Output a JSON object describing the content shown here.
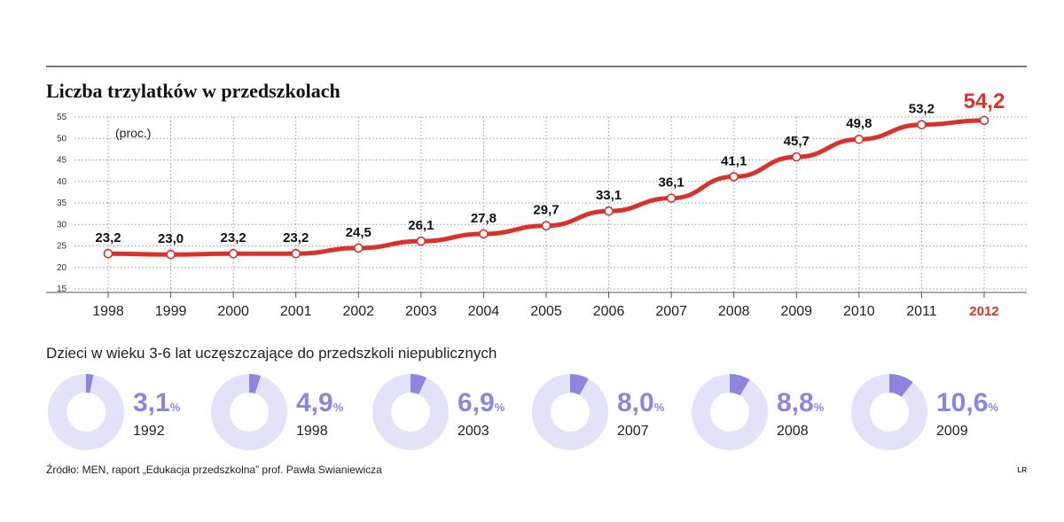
{
  "chart_data": [
    {
      "type": "line",
      "title": "Liczba trzylatków w przedszkolach",
      "unit_label": "(proc.)",
      "x": [
        "1998",
        "1999",
        "2000",
        "2001",
        "2002",
        "2003",
        "2004",
        "2005",
        "2006",
        "2007",
        "2008",
        "2009",
        "2010",
        "2011",
        "2012"
      ],
      "series": [
        {
          "values": [
            23.2,
            23.0,
            23.2,
            23.2,
            24.5,
            26.1,
            27.8,
            29.7,
            33.1,
            36.1,
            41.1,
            45.7,
            49.8,
            53.2,
            54.2
          ],
          "labels": [
            "23,2",
            "23,0",
            "23,2",
            "23,2",
            "24,5",
            "26,1",
            "27,8",
            "29,7",
            "33,1",
            "36,1",
            "41,1",
            "45,7",
            "49,8",
            "53,2",
            "54,2"
          ],
          "color": "#d9322b"
        }
      ],
      "highlight": {
        "x": "2012",
        "color": "#d9322b"
      },
      "y_ticks": [
        "15",
        "20",
        "25",
        "30",
        "35",
        "40",
        "45",
        "50",
        "55"
      ],
      "ylim": [
        15,
        55
      ],
      "grid": true
    },
    {
      "type": "pie",
      "title": "Dzieci w wieku 3-6 lat uczęszczające do przedszkoli niepublicznych",
      "items": [
        {
          "year": "1992",
          "value": 3.1,
          "label": "3,1"
        },
        {
          "year": "1998",
          "value": 4.9,
          "label": "4,9"
        },
        {
          "year": "2003",
          "value": 6.9,
          "label": "6,9"
        },
        {
          "year": "2007",
          "value": 8.0,
          "label": "8,0"
        },
        {
          "year": "2008",
          "value": 8.8,
          "label": "8,8"
        },
        {
          "year": "2009",
          "value": 10.6,
          "label": "10,6"
        }
      ],
      "percent_sign": "%",
      "colors": {
        "fill": "#8c86e0",
        "rest": "#e4e2f8"
      }
    }
  ],
  "source": "Źródło: MEN, raport „Edukacja przedszkolna” prof. Pawła Swianiewicza",
  "signature": "LR"
}
